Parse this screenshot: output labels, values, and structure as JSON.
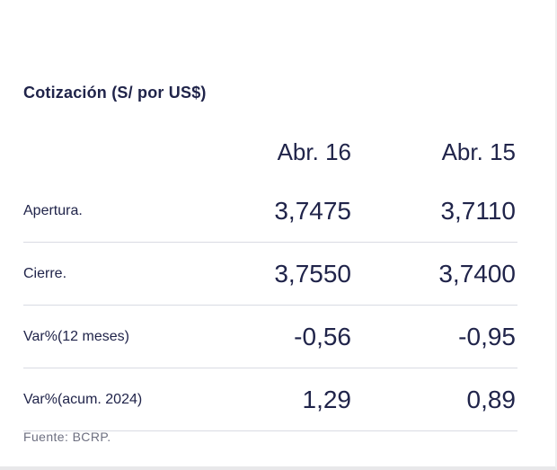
{
  "title": "Cotización (S/ por US$)",
  "columns": [
    "Abr. 16",
    "Abr. 15"
  ],
  "rows": [
    {
      "label": "Apertura.",
      "values": [
        "3,7475",
        "3,7110"
      ]
    },
    {
      "label": "Cierre.",
      "values": [
        "3,7550",
        "3,7400"
      ]
    },
    {
      "label": "Var%(12 meses)",
      "values": [
        "-0,56",
        "-0,95"
      ]
    },
    {
      "label": "Var%(acum. 2024)",
      "values": [
        "1,29",
        "0,89"
      ]
    }
  ],
  "source": "Fuente: BCRP."
}
